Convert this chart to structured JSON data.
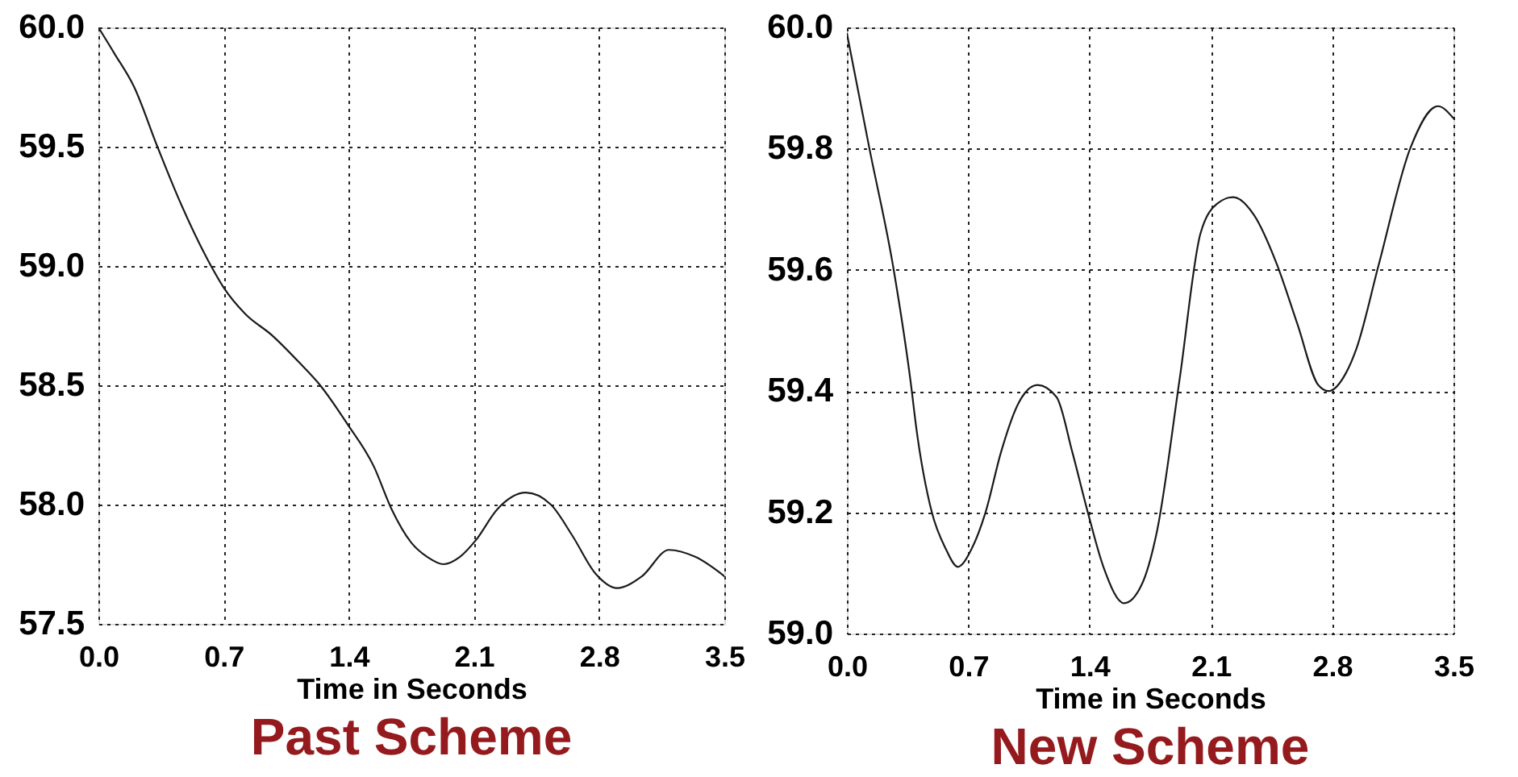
{
  "chart_data": [
    {
      "type": "line",
      "title": "Past Scheme",
      "xlabel": "Time in Seconds",
      "x": [
        0,
        0.09,
        0.2,
        0.33,
        0.45,
        0.63,
        0.7,
        0.82,
        0.97,
        1.13,
        1.24,
        1.39,
        1.54,
        1.64,
        1.75,
        1.84,
        1.93,
        2.02,
        2.11,
        2.23,
        2.39,
        2.53,
        2.65,
        2.78,
        2.9,
        3.04,
        3.19,
        3.34,
        3.5
      ],
      "series": [
        {
          "color": "#1a1a1a",
          "values": [
            60.0,
            59.89,
            59.75,
            59.5,
            59.28,
            59.0,
            58.91,
            58.8,
            58.71,
            58.59,
            58.5,
            58.34,
            58.16,
            57.98,
            57.84,
            57.78,
            57.75,
            57.78,
            57.85,
            57.98,
            58.05,
            58.0,
            57.87,
            57.71,
            57.65,
            57.7,
            57.81,
            57.78,
            57.7
          ]
        }
      ],
      "xlim": [
        0,
        3.5
      ],
      "ylim": [
        57.5,
        60.0
      ],
      "xticks": [
        {
          "value": 0,
          "label": "0.0"
        },
        {
          "value": 0.7,
          "label": "0.7"
        },
        {
          "value": 1.4,
          "label": "1.4"
        },
        {
          "value": 2.1,
          "label": "2.1"
        },
        {
          "value": 2.8,
          "label": "2.8"
        },
        {
          "value": 3.5,
          "label": "3.5"
        }
      ],
      "yticks": [
        {
          "value": 57.5,
          "label": "57.5"
        },
        {
          "value": 58,
          "label": "58.0"
        },
        {
          "value": 58.5,
          "label": "58.5"
        },
        {
          "value": 59,
          "label": "59.0"
        },
        {
          "value": 59.5,
          "label": "59.5"
        },
        {
          "value": 60,
          "label": "60.0"
        }
      ],
      "grid": true,
      "line_style": "solid"
    },
    {
      "type": "line",
      "title": "New Scheme",
      "xlabel": "Time in Seconds",
      "x": [
        0,
        0.13,
        0.27,
        0.37,
        0.4,
        0.49,
        0.57,
        0.64,
        0.72,
        0.8,
        0.89,
        0.99,
        1.1,
        1.21,
        1.3,
        1.39,
        1.48,
        1.6,
        1.7,
        1.79,
        1.92,
        2.04,
        2.14,
        2.23,
        2.35,
        2.48,
        2.6,
        2.72,
        2.78,
        2.88,
        2.94,
        3.07,
        3.25,
        3.41,
        3.5
      ],
      "series": [
        {
          "color": "#1a1a1a",
          "values": [
            59.99,
            59.8,
            59.6,
            59.41,
            59.34,
            59.2,
            59.14,
            59.11,
            59.14,
            59.2,
            59.3,
            59.38,
            59.41,
            59.39,
            59.3,
            59.2,
            59.11,
            59.05,
            59.08,
            59.17,
            59.42,
            59.66,
            59.71,
            59.72,
            59.69,
            59.61,
            59.51,
            59.41,
            59.4,
            59.43,
            59.47,
            59.61,
            59.8,
            59.87,
            59.85
          ]
        }
      ],
      "xlim": [
        0,
        3.5
      ],
      "ylim": [
        59.0,
        60.0
      ],
      "xticks": [
        {
          "value": 0,
          "label": "0.0"
        },
        {
          "value": 0.7,
          "label": "0.7"
        },
        {
          "value": 1.4,
          "label": "1.4"
        },
        {
          "value": 2.1,
          "label": "2.1"
        },
        {
          "value": 2.8,
          "label": "2.8"
        },
        {
          "value": 3.5,
          "label": "3.5"
        }
      ],
      "yticks": [
        {
          "value": 59,
          "label": "59.0"
        },
        {
          "value": 59.2,
          "label": "59.2"
        },
        {
          "value": 59.4,
          "label": "59.4"
        },
        {
          "value": 59.6,
          "label": "59.6"
        },
        {
          "value": 59.8,
          "label": "59.8"
        },
        {
          "value": 60,
          "label": "60.0"
        }
      ],
      "grid": true,
      "line_style": "solid"
    }
  ]
}
